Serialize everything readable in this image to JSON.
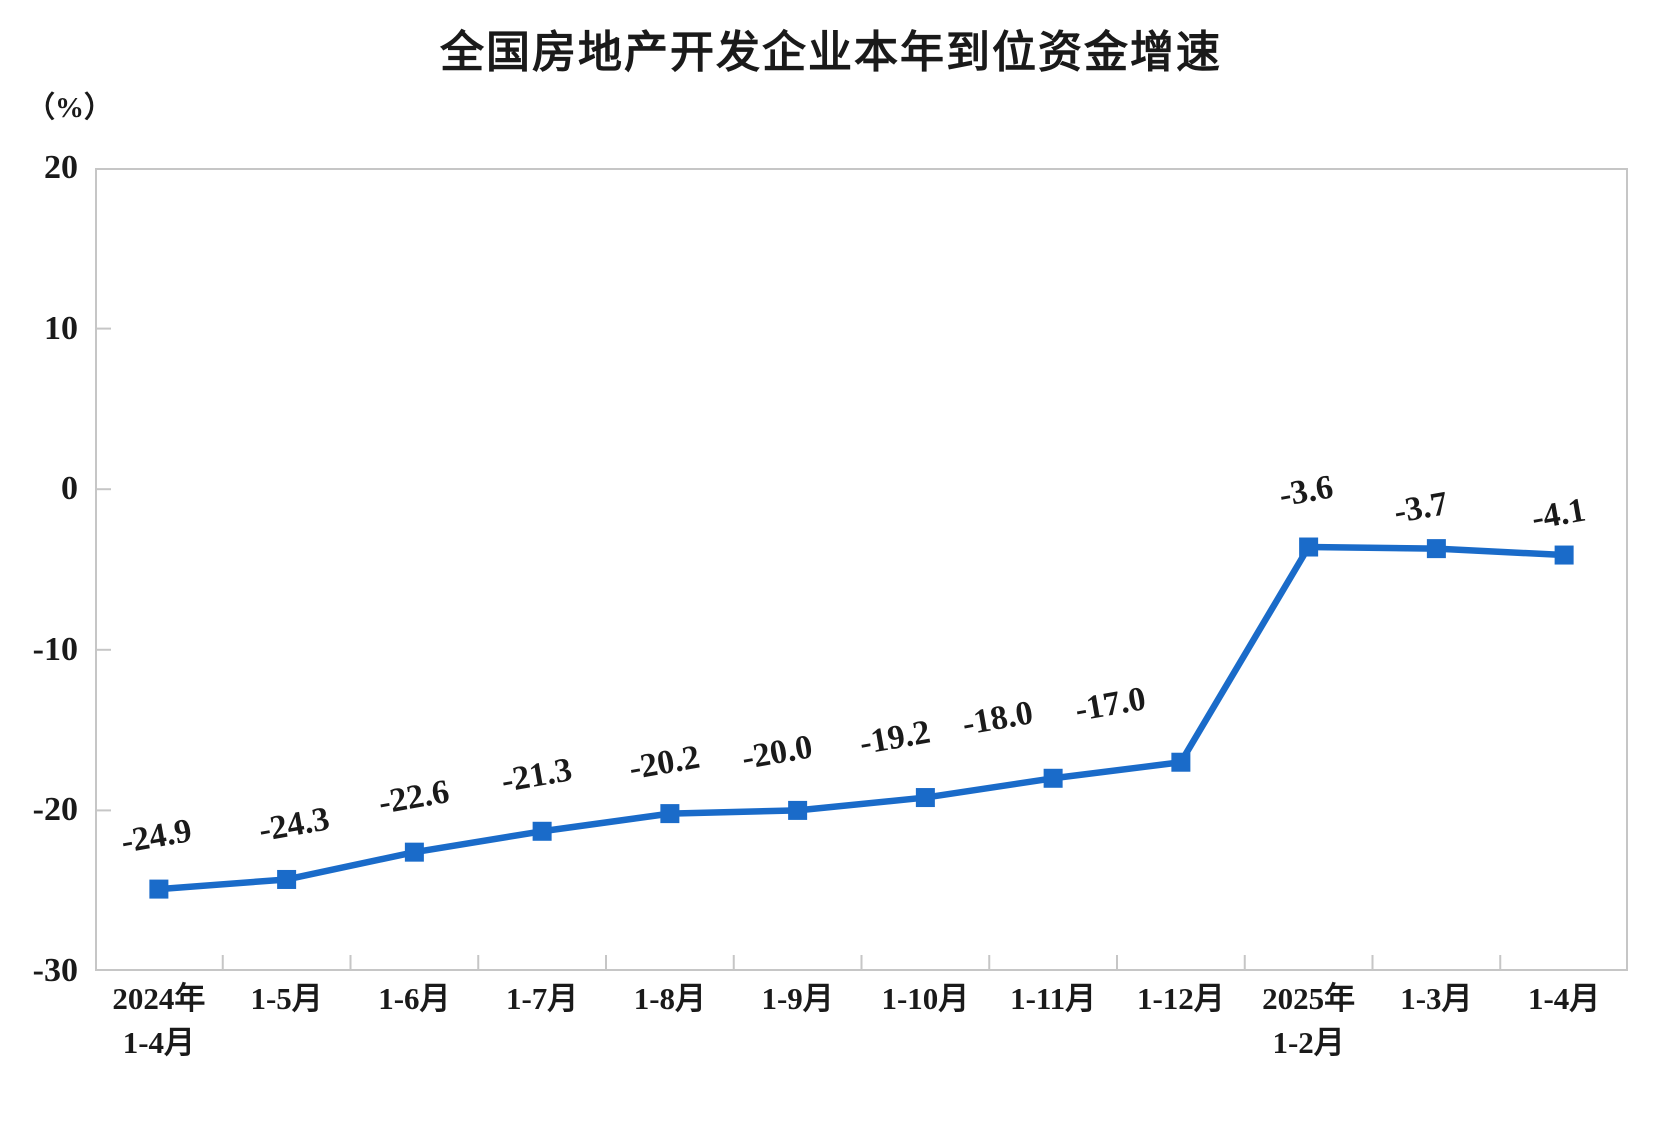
{
  "chart": {
    "title": "全国房地产开发企业本年到位资金增速",
    "unit_label": "（%）"
  },
  "chart_data": {
    "type": "line",
    "title": "全国房地产开发企业本年到位资金增速",
    "ylabel": "（%）",
    "categories": [
      "2024年\n1-4月",
      "1-5月",
      "1-6月",
      "1-7月",
      "1-8月",
      "1-9月",
      "1-10月",
      "1-11月",
      "1-12月",
      "2025年\n1-2月",
      "1-3月",
      "1-4月"
    ],
    "values": [
      -24.9,
      -24.3,
      -22.6,
      -21.3,
      -20.2,
      -20.0,
      -19.2,
      -18.0,
      -17.0,
      -3.6,
      -3.7,
      -4.1
    ],
    "point_labels": [
      "-24.9",
      "-24.3",
      "-22.6",
      "-21.3",
      "-20.2",
      "-20.0",
      "-19.2",
      "-18.0",
      "-17.0",
      "-3.6",
      "-3.7",
      "-4.1"
    ],
    "yticks": [
      20,
      10,
      0,
      -10,
      -20,
      -30
    ],
    "ylim": [
      -30,
      20
    ],
    "grid": false,
    "legend_position": "none",
    "marker": "square",
    "colors": {
      "line": "#1A6BC9",
      "marker": "#1A6BC9",
      "axis": "#C6C6C6",
      "text": "#1A1A1A"
    }
  }
}
